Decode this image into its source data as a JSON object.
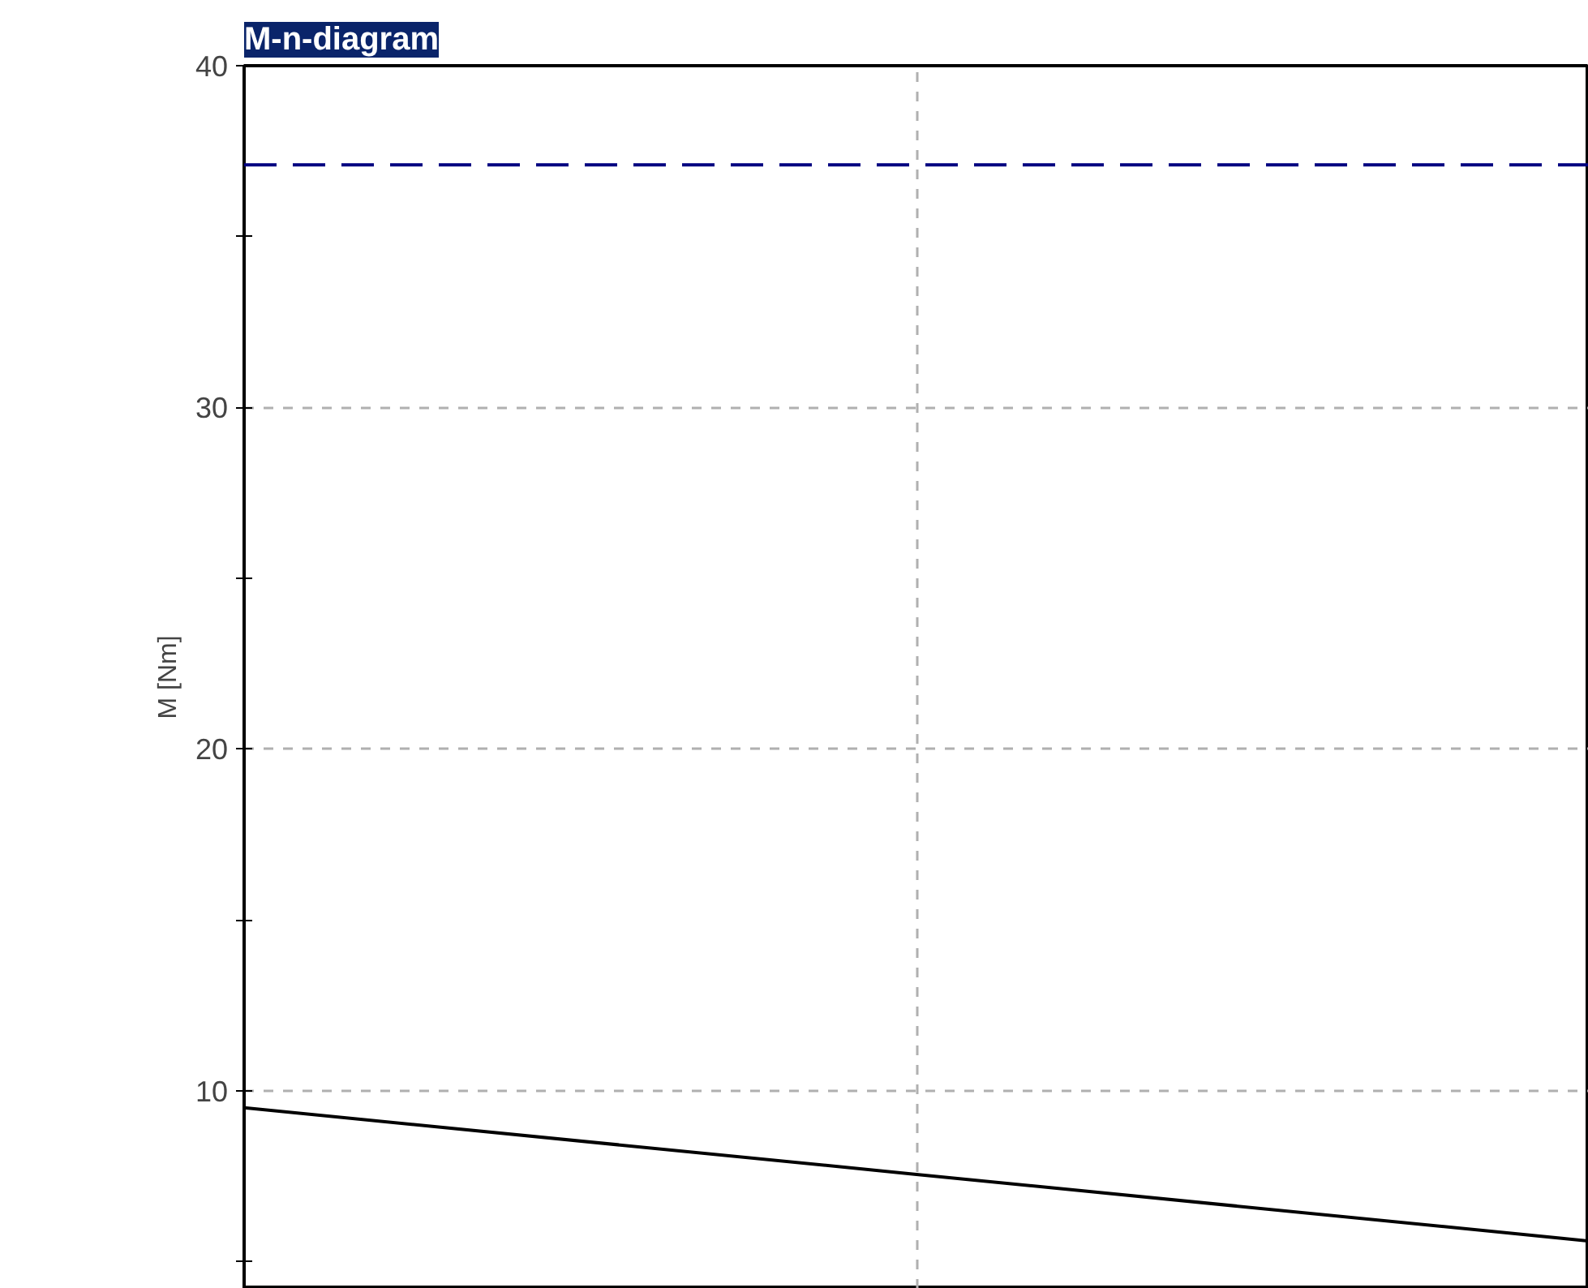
{
  "chart_data": {
    "type": "line",
    "title": "M-n-diagram",
    "ylabel": "M [Nm]",
    "categories": [
      null,
      null,
      null
    ],
    "series": [
      {
        "color": "#000000",
        "values": [
          9.5,
          7.55,
          5.6
        ]
      }
    ],
    "ylim": [
      4.2,
      40
    ],
    "yticks": [
      {
        "value": 5,
        "label": null
      },
      10,
      {
        "value": 15,
        "label": null
      },
      20,
      {
        "value": 25,
        "label": null
      },
      30,
      {
        "value": 35,
        "label": null
      },
      40
    ],
    "ref_lines": [
      {
        "axis": "y",
        "value": 37.1,
        "color": "#000080",
        "line_style": "dashed"
      }
    ],
    "grid": true,
    "tick_labels": "y"
  }
}
